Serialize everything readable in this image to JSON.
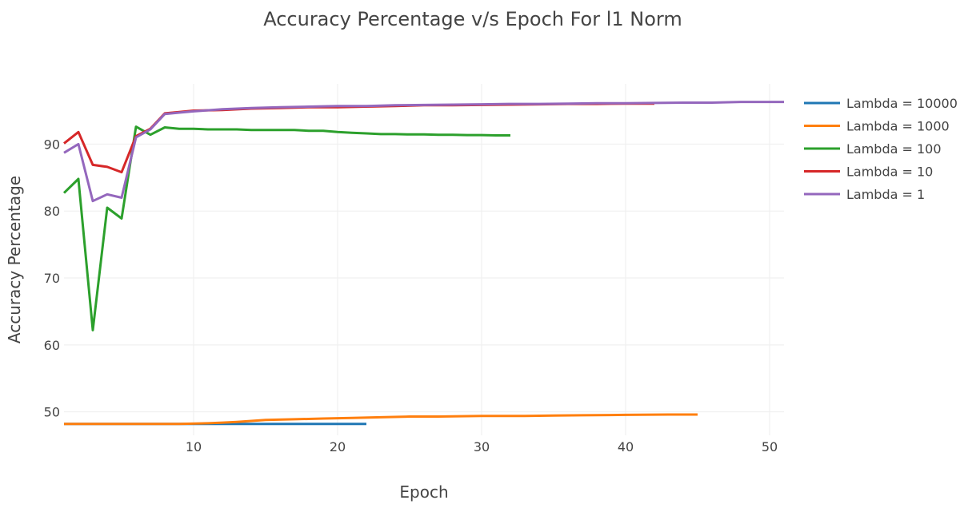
{
  "chart_data": {
    "type": "line",
    "title": "Accuracy Percentage v/s Epoch For l1 Norm",
    "xlabel": "Epoch",
    "ylabel": "Accuracy Percentage",
    "xlim": [
      1,
      51
    ],
    "ylim": [
      46.5,
      99
    ],
    "xticks": [
      10,
      20,
      30,
      40,
      50
    ],
    "yticks": [
      50,
      60,
      70,
      80,
      90
    ],
    "grid": true,
    "legend_position": "right",
    "series": [
      {
        "name": "Lambda = 10000",
        "color": "#1f77b4",
        "x": [
          1,
          2,
          3,
          4,
          5,
          6,
          7,
          8,
          9,
          10,
          11,
          12,
          13,
          14,
          15,
          16,
          17,
          18,
          19,
          20,
          21,
          22
        ],
        "y": [
          48.2,
          48.2,
          48.2,
          48.2,
          48.2,
          48.2,
          48.2,
          48.2,
          48.2,
          48.2,
          48.2,
          48.2,
          48.2,
          48.2,
          48.2,
          48.2,
          48.2,
          48.2,
          48.2,
          48.2,
          48.2,
          48.2
        ]
      },
      {
        "name": "Lambda = 1000",
        "color": "#ff7f0e",
        "x": [
          1,
          3,
          5,
          7,
          9,
          11,
          12,
          13,
          15,
          17,
          19,
          21,
          23,
          25,
          27,
          30,
          33,
          35,
          37,
          40,
          43,
          45
        ],
        "y": [
          48.2,
          48.2,
          48.2,
          48.2,
          48.2,
          48.3,
          48.4,
          48.5,
          48.8,
          48.9,
          49.0,
          49.1,
          49.2,
          49.3,
          49.3,
          49.4,
          49.4,
          49.45,
          49.5,
          49.55,
          49.6,
          49.6
        ]
      },
      {
        "name": "Lambda = 100",
        "color": "#2ca02c",
        "x": [
          1,
          2,
          3,
          4,
          5,
          6,
          7,
          8,
          9,
          10,
          11,
          12,
          13,
          14,
          15,
          16,
          17,
          18,
          19,
          20,
          21,
          22,
          23,
          24,
          25,
          26,
          27,
          28,
          29,
          30,
          31,
          32
        ],
        "y": [
          82.7,
          84.8,
          62.2,
          80.5,
          78.9,
          92.6,
          91.4,
          92.5,
          92.3,
          92.3,
          92.2,
          92.2,
          92.2,
          92.1,
          92.1,
          92.1,
          92.1,
          92.0,
          92.0,
          91.8,
          91.7,
          91.6,
          91.5,
          91.5,
          91.45,
          91.45,
          91.4,
          91.4,
          91.35,
          91.35,
          91.3,
          91.3
        ]
      },
      {
        "name": "Lambda = 10",
        "color": "#d62728",
        "x": [
          1,
          2,
          3,
          4,
          5,
          6,
          7,
          8,
          9,
          10,
          12,
          14,
          16,
          18,
          20,
          22,
          24,
          26,
          28,
          30,
          32,
          34,
          36,
          38,
          40,
          42
        ],
        "y": [
          90.1,
          91.8,
          86.9,
          86.6,
          85.8,
          91.2,
          92.3,
          94.6,
          94.8,
          95.0,
          95.1,
          95.3,
          95.4,
          95.5,
          95.5,
          95.6,
          95.7,
          95.8,
          95.8,
          95.85,
          95.9,
          95.95,
          96.0,
          96.0,
          96.05,
          96.05
        ]
      },
      {
        "name": "Lambda = 1",
        "color": "#9467bd",
        "x": [
          1,
          2,
          3,
          4,
          5,
          6,
          7,
          8,
          9,
          10,
          12,
          14,
          16,
          18,
          20,
          22,
          24,
          26,
          28,
          30,
          32,
          34,
          36,
          38,
          40,
          42,
          44,
          46,
          48,
          50,
          51
        ],
        "y": [
          88.7,
          90.0,
          81.5,
          82.5,
          82.0,
          91.0,
          92.2,
          94.5,
          94.7,
          94.9,
          95.2,
          95.4,
          95.5,
          95.6,
          95.7,
          95.7,
          95.8,
          95.85,
          95.9,
          95.95,
          96.0,
          96.0,
          96.05,
          96.1,
          96.1,
          96.15,
          96.2,
          96.2,
          96.3,
          96.3,
          96.3
        ]
      }
    ]
  }
}
